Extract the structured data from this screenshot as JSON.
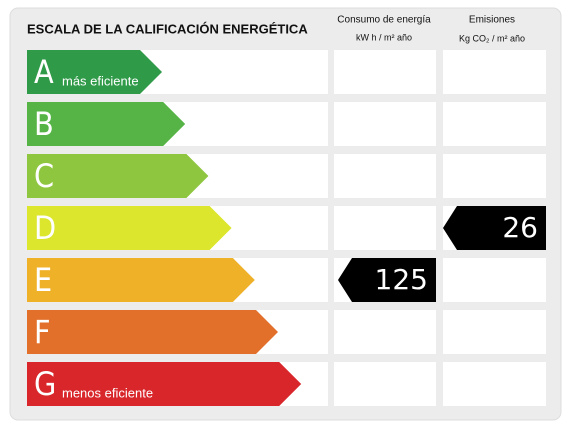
{
  "header": {
    "title": "ESCALA DE LA CALIFICACIÓN ENERGÉTICA",
    "consumption_title": "Consumo de energía",
    "consumption_unit": "kW h / m² año",
    "emissions_title": "Emisiones",
    "emissions_unit": "Kg CO₂ / m² año"
  },
  "rows": [
    {
      "letter": "A",
      "note": "más eficiente",
      "color": "#2f9a48"
    },
    {
      "letter": "B",
      "color": "#56b447"
    },
    {
      "letter": "C",
      "color": "#8fc63f"
    },
    {
      "letter": "D",
      "color": "#dbe62c",
      "emissions": 26
    },
    {
      "letter": "E",
      "color": "#efb128",
      "consumption": 125
    },
    {
      "letter": "F",
      "color": "#e2702b"
    },
    {
      "letter": "G",
      "note": "menos eficiente",
      "color": "#d8262b"
    }
  ]
}
